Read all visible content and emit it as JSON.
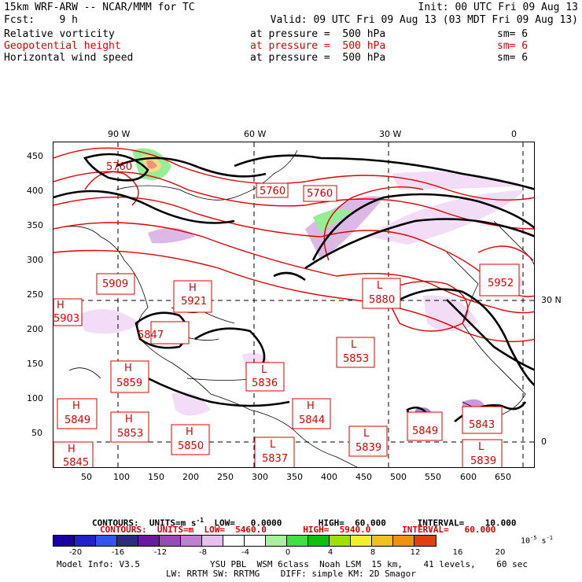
{
  "header": {
    "model": "15km WRF-ARW -- NCAR/MMM for TC",
    "init": "Init: 00 UTC Fri 09 Aug 13",
    "fcst": "Fcst:    9 h",
    "valid": "Valid: 09 UTC Fri 09 Aug 13 (03 MDT Fri 09 Aug 13)",
    "fields": [
      {
        "name": "Relative vorticity",
        "level": "at pressure =  500 hPa",
        "sm": "sm= 6",
        "color": "#000000"
      },
      {
        "name": "Geopotential height",
        "level": "at pressure =  500 hPa",
        "sm": "sm= 6",
        "color": "#e00000"
      },
      {
        "name": "Horizontal wind speed",
        "level": "at pressure =  500 hPa",
        "sm": "sm= 6",
        "color": "#000000"
      }
    ]
  },
  "map": {
    "top_lon_labels": [
      "90 W",
      "60 W",
      "30 W",
      "0"
    ],
    "right_lat_labels": [
      "30 N",
      "0"
    ],
    "x_ticks": [
      "50",
      "100",
      "150",
      "200",
      "250",
      "300",
      "350",
      "400",
      "450",
      "500",
      "550",
      "600",
      "650"
    ],
    "y_ticks": [
      "50",
      "100",
      "150",
      "200",
      "250",
      "300",
      "350",
      "400",
      "450"
    ],
    "pressure_labels": [
      {
        "type": "",
        "value": "5760"
      },
      {
        "type": "",
        "value": "5760"
      },
      {
        "type": "",
        "value": "5760"
      },
      {
        "type": "",
        "value": "5909"
      },
      {
        "type": "H",
        "value": "5921"
      },
      {
        "type": "H",
        "value": "5903"
      },
      {
        "type": "",
        "value": "5847"
      },
      {
        "type": "H",
        "value": "5859"
      },
      {
        "type": "L",
        "value": "5836"
      },
      {
        "type": "L",
        "value": "5853"
      },
      {
        "type": "L",
        "value": "5880"
      },
      {
        "type": "",
        "value": "5952"
      },
      {
        "type": "H",
        "value": "5849"
      },
      {
        "type": "H",
        "value": "5853"
      },
      {
        "type": "H",
        "value": "5850"
      },
      {
        "type": "H",
        "value": "5844"
      },
      {
        "type": "L",
        "value": "5837"
      },
      {
        "type": "L",
        "value": "5839"
      },
      {
        "type": "",
        "value": "5849"
      },
      {
        "type": "",
        "value": "5843"
      },
      {
        "type": "L",
        "value": "5839"
      },
      {
        "type": "H",
        "value": "5845"
      }
    ]
  },
  "contours": {
    "black": "CONTOURS:  UNITS=m s",
    "black_sup": "-1",
    "black_rest": "  LOW=   0.0000       HIGH=  60.000      INTERVAL=    10.000",
    "red": "CONTOURS:  UNITS=m  LOW=  5460.0       HIGH=  5940.0      INTERVAL=   60.000"
  },
  "colorbar": {
    "colors": [
      "#1a00a0",
      "#2222c8",
      "#3355ee",
      "#2d2d80",
      "#6a1aa0",
      "#9a4ab8",
      "#c080d0",
      "#e8c0f0",
      "#ffffff",
      "#ffffff",
      "#a8f0a0",
      "#40e040",
      "#10c010",
      "#a0e000",
      "#f0f030",
      "#f0c020",
      "#f09010",
      "#e04010"
    ],
    "tick_labels": [
      "-20",
      "-16",
      "-12",
      "-8",
      "-4",
      "0",
      "4",
      "8",
      "12",
      "16",
      "20"
    ],
    "unit": "10",
    "unit_exp": "-5",
    "unit_rest": " s",
    "unit_exp2": "-1"
  },
  "footer": {
    "model_info": "Model Info: V3.5",
    "line1": "YSU PBL  WSM 6class  Noah LSM  15 km,    41 levels,    60 sec",
    "line2": "LW: RRTM SW: RRTMG    DIFF: simple KM: 2D Smagor"
  }
}
